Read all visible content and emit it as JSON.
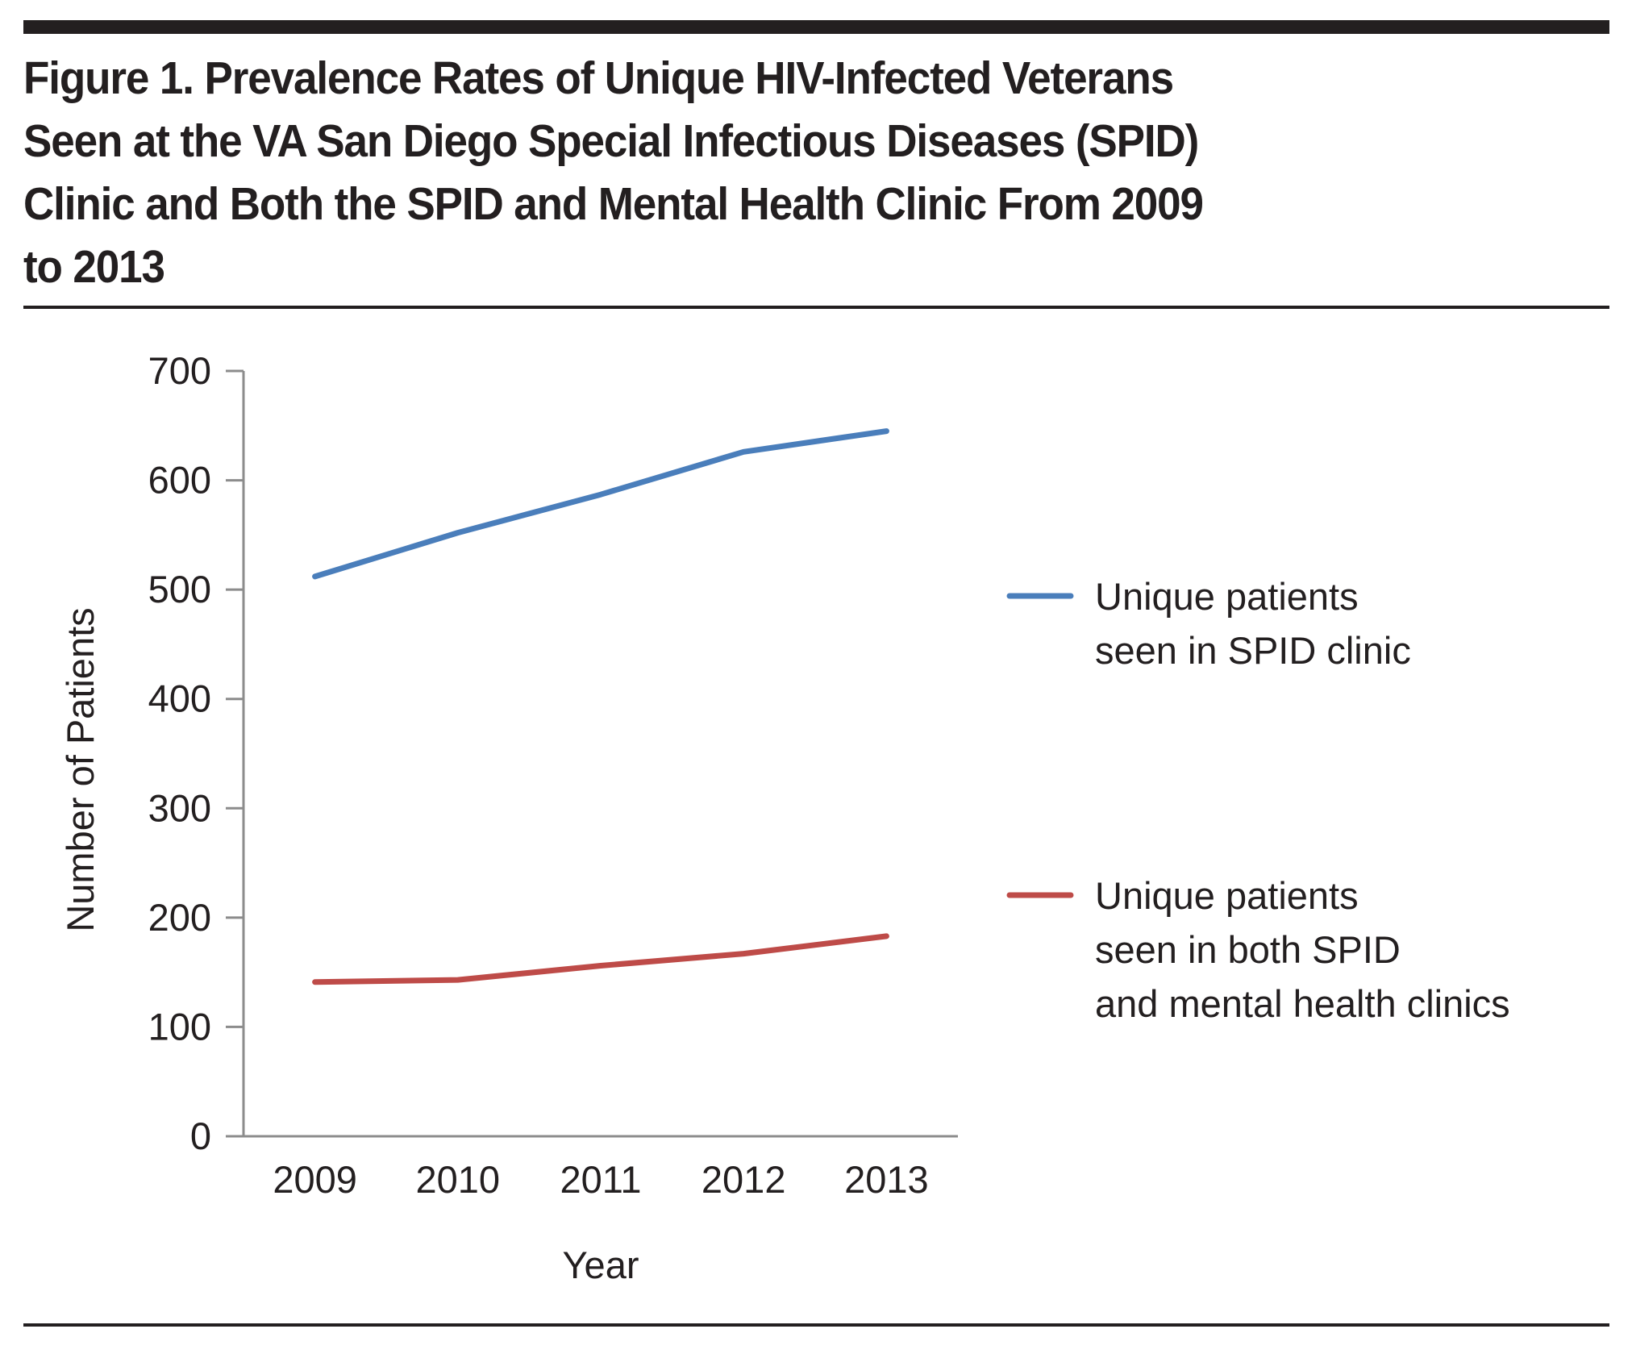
{
  "figure": {
    "title_lines": [
      "Figure 1. Prevalence Rates of Unique HIV-Infected Veterans",
      "Seen at the VA San Diego Special Infectious Diseases (SPID)",
      "Clinic and Both the SPID and Mental Health Clinic From 2009",
      "to 2013"
    ]
  },
  "chart_data": {
    "type": "line",
    "title": "Figure 1. Prevalence Rates of Unique HIV-Infected Veterans Seen at the VA San Diego Special Infectious Diseases (SPID) Clinic and Both the SPID and Mental Health Clinic From 2009 to 2013",
    "xlabel": "Year",
    "ylabel": "Number of Patients",
    "categories": [
      "2009",
      "2010",
      "2011",
      "2012",
      "2013"
    ],
    "ylim": [
      0,
      700
    ],
    "yticks": [
      0,
      100,
      200,
      300,
      400,
      500,
      600,
      700
    ],
    "grid": false,
    "legend_position": "right",
    "series": [
      {
        "name": "Unique patients seen in SPID clinic",
        "legend_lines": [
          "Unique patients",
          "seen in SPID clinic"
        ],
        "color": "#4a7ebb",
        "values": [
          512,
          552,
          587,
          626,
          645
        ]
      },
      {
        "name": "Unique patients seen in both SPID and mental health clinics",
        "legend_lines": [
          "Unique patients",
          "seen in both SPID",
          "and mental health clinics"
        ],
        "color": "#be4b48",
        "values": [
          141,
          143,
          156,
          167,
          183
        ]
      }
    ]
  }
}
